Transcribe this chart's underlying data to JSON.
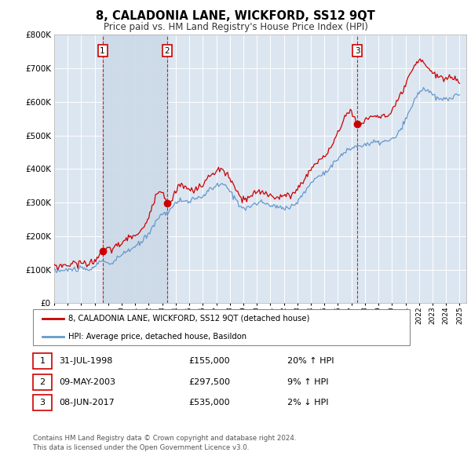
{
  "title": "8, CALADONIA LANE, WICKFORD, SS12 9QT",
  "subtitle": "Price paid vs. HM Land Registry's House Price Index (HPI)",
  "legend_line1": "8, CALADONIA LANE, WICKFORD, SS12 9QT (detached house)",
  "legend_line2": "HPI: Average price, detached house, Basildon",
  "footer1": "Contains HM Land Registry data © Crown copyright and database right 2024.",
  "footer2": "This data is licensed under the Open Government Licence v3.0.",
  "transactions": [
    {
      "num": 1,
      "date": "31-JUL-1998",
      "price": 155000,
      "hpi_rel": "20% ↑ HPI",
      "year": 1998.58
    },
    {
      "num": 2,
      "date": "09-MAY-2003",
      "price": 297500,
      "hpi_rel": "9% ↑ HPI",
      "year": 2003.36
    },
    {
      "num": 3,
      "date": "08-JUN-2017",
      "price": 535000,
      "hpi_rel": "2% ↓ HPI",
      "year": 2017.44
    }
  ],
  "ylim": [
    0,
    800000
  ],
  "yticks": [
    0,
    100000,
    200000,
    300000,
    400000,
    500000,
    600000,
    700000,
    800000
  ],
  "xlim_start": 1995.0,
  "xlim_end": 2025.5,
  "background_color": "#ffffff",
  "plot_bg_color": "#dce6f1",
  "grid_color": "#ffffff",
  "hpi_line_color": "#6699cc",
  "price_line_color": "#cc0000",
  "transaction_dot_color": "#cc0000",
  "vline_color": "#cc0000",
  "number_box_color": "#cc0000",
  "shade_color": "#ccd9e8"
}
